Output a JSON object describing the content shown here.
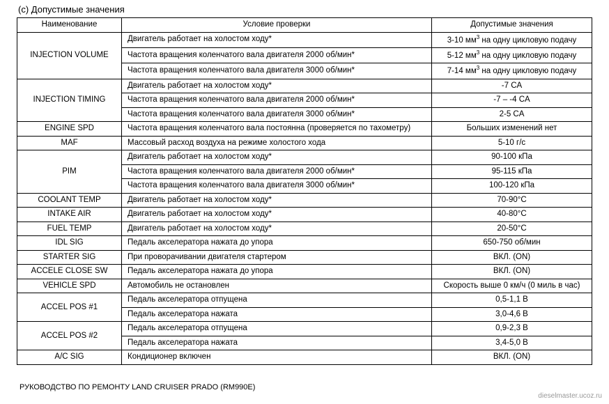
{
  "section_label": "(c)   Допустимые значения",
  "headers": {
    "name": "Наименование",
    "condition": "Условие проверки",
    "value": "Допустимые значения"
  },
  "groups": [
    {
      "param": "INJECTION VOLUME",
      "rows": [
        {
          "cond": "Двигатель работает на холостом ходу*",
          "val_html": "3-10 мм<sup>3</sup> на одну цикловую подачу"
        },
        {
          "cond": "Частота вращения коленчатого вала двигателя 2000 об/мин*",
          "val_html": "5-12 мм<sup>3</sup> на одну цикловую подачу"
        },
        {
          "cond": "Частота вращения коленчатого вала двигателя 3000 об/мин*",
          "val_html": "7-14 мм<sup>3</sup> на одну цикловую подачу"
        }
      ]
    },
    {
      "param": "INJECTION TIMING",
      "rows": [
        {
          "cond": "Двигатель работает на холостом ходу*",
          "val": "-7 CA"
        },
        {
          "cond": "Частота вращения коленчатого вала двигателя 2000 об/мин*",
          "val": "-7 – -4 CA"
        },
        {
          "cond": "Частота вращения коленчатого вала двигателя 3000 об/мин*",
          "val": "2-5 CA"
        }
      ]
    },
    {
      "param": "ENGINE SPD",
      "rows": [
        {
          "cond": "Частота вращения коленчатого вала постоянна (проверяется по тахометру)",
          "val": "Больших изменений нет"
        }
      ]
    },
    {
      "param": "MAF",
      "rows": [
        {
          "cond": "Массовый расход воздуха на режиме холостого хода",
          "val": "5-10 г/с"
        }
      ]
    },
    {
      "param": "PIM",
      "rows": [
        {
          "cond": "Двигатель работает на холостом ходу*",
          "val": "90-100 кПа"
        },
        {
          "cond": "Частота вращения коленчатого вала двигателя 2000 об/мин*",
          "val": "95-115 кПа"
        },
        {
          "cond": "Частота вращения коленчатого вала двигателя 3000 об/мин*",
          "val": "100-120 кПа"
        }
      ]
    },
    {
      "param": "COOLANT TEMP",
      "rows": [
        {
          "cond": "Двигатель работает на холостом ходу*",
          "val": "70-90°C"
        }
      ]
    },
    {
      "param": "INTAKE AIR",
      "rows": [
        {
          "cond": "Двигатель работает на холостом ходу*",
          "val": "40-80°C"
        }
      ]
    },
    {
      "param": "FUEL TEMP",
      "rows": [
        {
          "cond": "Двигатель работает на холостом ходу*",
          "val": "20-50°C"
        }
      ]
    },
    {
      "param": "IDL SIG",
      "rows": [
        {
          "cond": "Педаль акселератора нажата до упора",
          "val": "650-750 об/мин"
        }
      ]
    },
    {
      "param": "STARTER SIG",
      "rows": [
        {
          "cond": "При проворачивании двигателя стартером",
          "val": "ВКЛ. (ON)"
        }
      ]
    },
    {
      "param": "ACCELE CLOSE SW",
      "rows": [
        {
          "cond": "Педаль акселератора нажата до упора",
          "val": "ВКЛ. (ON)"
        }
      ]
    },
    {
      "param": "VEHICLE SPD",
      "rows": [
        {
          "cond": "Автомобиль не остановлен",
          "val": "Скорость выше 0 км/ч (0 миль в час)"
        }
      ]
    },
    {
      "param": "ACCEL POS #1",
      "rows": [
        {
          "cond": "Педаль акселератора отпущена",
          "val": "0,5-1,1 В"
        },
        {
          "cond": "Педаль акселератора нажата",
          "val": "3,0-4,6 В"
        }
      ]
    },
    {
      "param": "ACCEL POS #2",
      "rows": [
        {
          "cond": "Педаль акселератора отпущена",
          "val": "0,9-2,3 В"
        },
        {
          "cond": "Педаль акселератора нажата",
          "val": "3,4-5,0 В"
        }
      ]
    },
    {
      "param": "A/C SIG",
      "rows": [
        {
          "cond": "Кондиционер включен",
          "val": "ВКЛ. (ON)"
        }
      ]
    }
  ],
  "footer_left": "РУКОВОДСТВО ПО РЕМОНТУ LAND CRUISER PRADO (RM990E)",
  "footer_right": "dieselmaster.ucoz.ru"
}
